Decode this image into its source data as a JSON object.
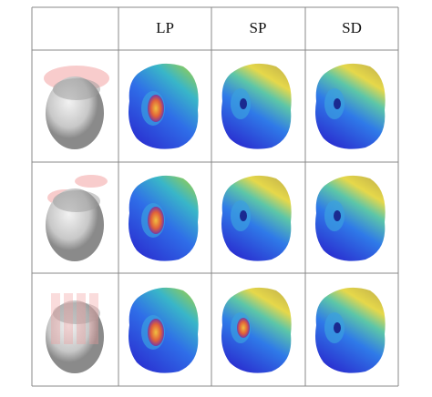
{
  "header": {
    "columns": [
      "LP",
      "SP",
      "SD"
    ]
  }
}
